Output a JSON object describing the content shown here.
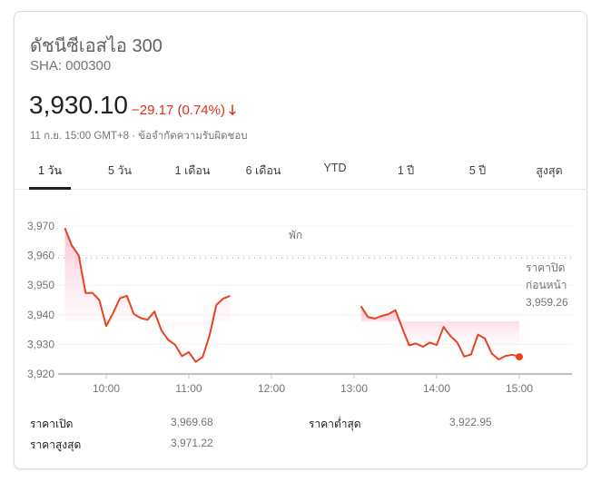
{
  "header": {
    "title": "ดัชนีซีเอสไอ 300",
    "ticker": "SHA: 000300",
    "price": "3,930.10",
    "change": "−29.17 (0.74%)",
    "change_icon": "arrow-down-icon",
    "meta": "11 ก.ย. 15:00 GMT+8 · ข้อจำกัดความรับผิดชอบ",
    "accent_negative": "#d93025"
  },
  "tabs": [
    {
      "label": "1 วัน",
      "active": true
    },
    {
      "label": "5 วัน"
    },
    {
      "label": "1 เดือน"
    },
    {
      "label": "6 เดือน"
    },
    {
      "label": "YTD"
    },
    {
      "label": "1 ปี"
    },
    {
      "label": "5 ปี"
    },
    {
      "label": "สูงสุด"
    }
  ],
  "chart_data": {
    "type": "line",
    "color": "#e8431f",
    "fill": "#fce4ec",
    "ylim": [
      3920,
      3970
    ],
    "y_ticks": [
      "3,970",
      "3,960",
      "3,950",
      "3,940",
      "3,930",
      "3,920"
    ],
    "x_ticks": [
      "10:00",
      "11:00",
      "12:00",
      "13:00",
      "14:00",
      "15:00"
    ],
    "break_label": "พัก",
    "previous_close": {
      "value": 3959.26,
      "label_line1": "ราคาปิด",
      "label_line2": "ก่อนหน้า",
      "label_value": "3,959.26"
    },
    "morning": {
      "start": "09:30",
      "interval_min": 5,
      "values": [
        3969.3,
        3963.4,
        3960.1,
        3947.4,
        3947.4,
        3945.0,
        3936.2,
        3940.6,
        3945.6,
        3946.4,
        3940.3,
        3938.9,
        3938.3,
        3941.1,
        3934.8,
        3931.5,
        3929.9,
        3926.0,
        3927.4,
        3924.1,
        3925.7,
        3933.0,
        3943.3,
        3945.5,
        3946.4
      ]
    },
    "afternoon": {
      "start": "13:05",
      "interval_min": 5,
      "values": [
        3942.9,
        3939.3,
        3938.7,
        3939.6,
        3940.2,
        3941.6,
        3935.5,
        3929.7,
        3930.3,
        3929.2,
        3930.6,
        3929.8,
        3935.9,
        3932.8,
        3930.6,
        3925.9,
        3926.6,
        3933.3,
        3932.0,
        3926.9,
        3924.9,
        3926.1,
        3926.5,
        3925.8
      ]
    }
  },
  "stats": [
    {
      "label": "ราคาเปิด",
      "value": "3,969.68"
    },
    {
      "label": "ราคาต่ำสุด",
      "value": "3,922.95"
    },
    {
      "label": "ราคาสูงสุด",
      "value": "3,971.22"
    }
  ]
}
